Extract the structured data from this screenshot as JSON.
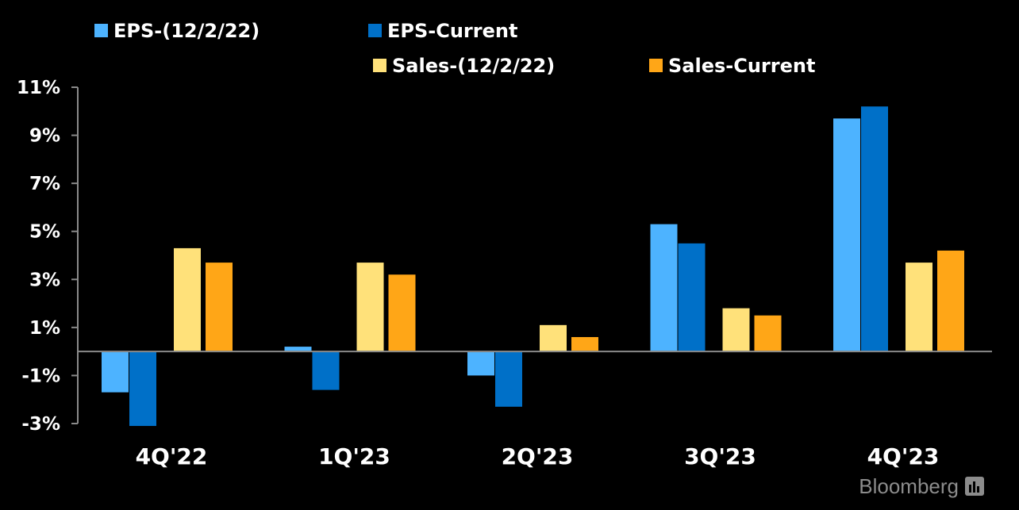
{
  "chart_data": {
    "type": "bar",
    "categories": [
      "4Q'22",
      "1Q'23",
      "2Q'23",
      "3Q'23",
      "4Q'23"
    ],
    "series": [
      {
        "name": "EPS-(12/2/22)",
        "color": "#4db3ff",
        "values": [
          -1.7,
          0.2,
          -1.0,
          5.3,
          9.7
        ]
      },
      {
        "name": "EPS-Current",
        "color": "#0070c8",
        "values": [
          -3.1,
          -1.6,
          -2.3,
          4.5,
          10.2
        ]
      },
      {
        "name": "Sales-(12/2/22)",
        "color": "#ffe17a",
        "values": [
          4.3,
          3.7,
          1.1,
          1.8,
          3.7
        ]
      },
      {
        "name": "Sales-Current",
        "color": "#ffa617",
        "values": [
          3.7,
          3.2,
          0.6,
          1.5,
          4.2
        ]
      }
    ],
    "y_ticks": [
      "11%",
      "9%",
      "7%",
      "5%",
      "3%",
      "1%",
      "-1%",
      "-3%"
    ],
    "ylim": [
      -3,
      11
    ],
    "title": "",
    "xlabel": "",
    "ylabel": "",
    "legend_position": "top",
    "grid": false
  },
  "branding": {
    "name": "Bloomberg",
    "icon": "bloomberg-terminal-icon",
    "color": "#8c8c8c"
  }
}
